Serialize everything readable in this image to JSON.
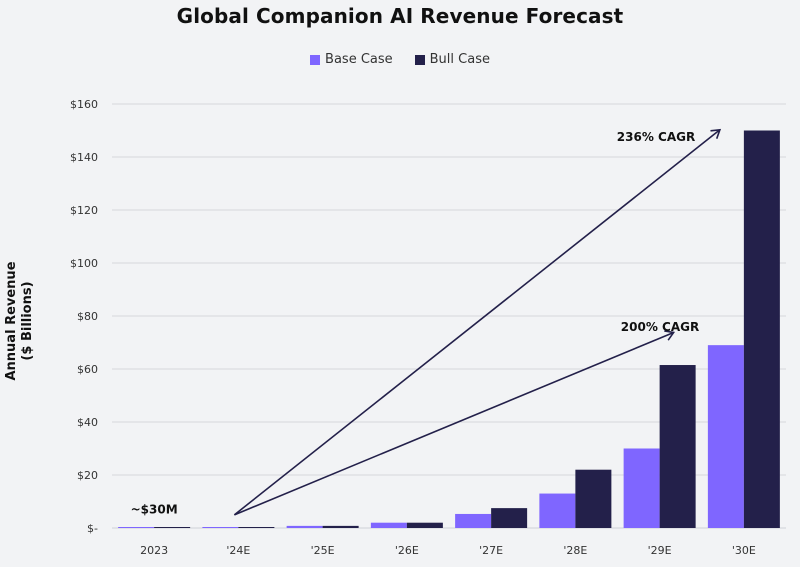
{
  "chart_data": {
    "type": "bar",
    "title": "Global Companion AI Revenue Forecast",
    "xlabel": "",
    "ylabel": "Annual Revenue ($ Billions)",
    "ylabel_lines": [
      "Annual Revenue",
      "($ Billions)"
    ],
    "ylim": [
      0,
      160
    ],
    "yticks": [
      0,
      20,
      40,
      60,
      80,
      100,
      120,
      140,
      160
    ],
    "ytick_labels": [
      "$-",
      "$20",
      "$40",
      "$60",
      "$80",
      "$100",
      "$120",
      "$140",
      "$160"
    ],
    "grid": true,
    "legend_position": "top-center",
    "categories": [
      "2023",
      "'24E",
      "'25E",
      "'26E",
      "'27E",
      "'28E",
      "'29E",
      "'30E"
    ],
    "series": [
      {
        "name": "Base Case",
        "color": "#7f66ff",
        "values": [
          0.03,
          0.2,
          0.8,
          2,
          5.3,
          13,
          30,
          69
        ]
      },
      {
        "name": "Bull Case",
        "color": "#23204a",
        "values": [
          0.03,
          0.2,
          0.8,
          2,
          7.5,
          22,
          61.5,
          150
        ]
      }
    ],
    "annotations": [
      {
        "text": "~$30M",
        "category": "2023",
        "value": 7
      },
      {
        "text": "200% CAGR",
        "from": {
          "category": "'24E",
          "value": 11
        },
        "to": {
          "category": "'29E",
          "value": 70
        }
      },
      {
        "text": "236% CAGR",
        "from": {
          "category": "'24E",
          "value": 11
        },
        "to": {
          "category": "'30E",
          "value": 148
        }
      }
    ]
  }
}
